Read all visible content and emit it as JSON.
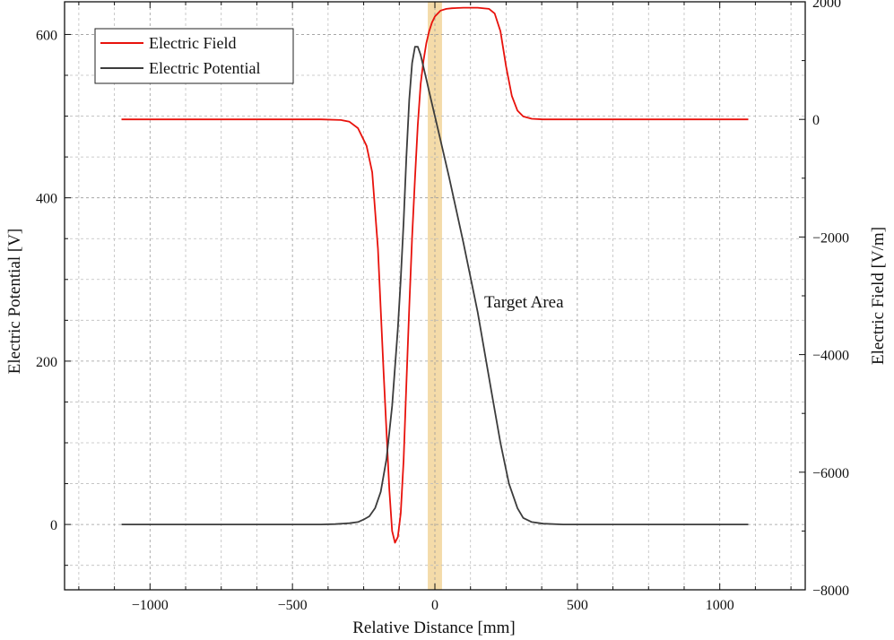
{
  "chart_data": {
    "type": "line",
    "xlabel": "Relative Distance [mm]",
    "ylabel_left": "Electric Potential [V]",
    "ylabel_right": "Electric Field [V/m]",
    "xlim": [
      -1300,
      1300
    ],
    "ylim_left": [
      -80,
      640
    ],
    "ylim_right": [
      -8000,
      2000
    ],
    "x_ticks": [
      -1000,
      -500,
      0,
      500,
      1000
    ],
    "x_tick_labels": [
      "−1000",
      "−500",
      "0",
      "500",
      "1000"
    ],
    "y_left_ticks": [
      0,
      200,
      400,
      600
    ],
    "y_left_tick_labels": [
      "0",
      "200",
      "400",
      "600"
    ],
    "y_right_ticks": [
      -8000,
      -6000,
      -4000,
      -2000,
      0,
      2000
    ],
    "y_right_tick_labels": [
      "−8000",
      "−6000",
      "−4000",
      "−2000",
      "0",
      "2000"
    ],
    "grid": true,
    "legend_position": "top-left",
    "annotation": "Target Area",
    "target_band": {
      "x_from": -25,
      "x_to": 25,
      "color": "#f2d59a"
    },
    "series": [
      {
        "name": "Electric Field",
        "axis": "right",
        "color": "#e8120c",
        "x": [
          -1100,
          -400,
          -330,
          -300,
          -270,
          -240,
          -220,
          -200,
          -180,
          -160,
          -150,
          -140,
          -130,
          -120,
          -110,
          -100,
          -90,
          -80,
          -70,
          -60,
          -50,
          -40,
          -30,
          -20,
          -10,
          0,
          20,
          40,
          60,
          100,
          150,
          190,
          210,
          230,
          250,
          270,
          290,
          310,
          340,
          380,
          450,
          1100
        ],
        "y": [
          0,
          0,
          -10,
          -40,
          -150,
          -450,
          -900,
          -2200,
          -4300,
          -6300,
          -7000,
          -7200,
          -7100,
          -6700,
          -5800,
          -4500,
          -3200,
          -2000,
          -1000,
          -100,
          600,
          1000,
          1300,
          1500,
          1650,
          1750,
          1850,
          1880,
          1890,
          1900,
          1900,
          1880,
          1800,
          1500,
          900,
          400,
          150,
          50,
          10,
          0,
          0,
          0
        ]
      },
      {
        "name": "Electric Potential",
        "axis": "left",
        "color": "#3c3c3c",
        "x": [
          -1100,
          -400,
          -350,
          -300,
          -270,
          -250,
          -230,
          -210,
          -190,
          -170,
          -150,
          -130,
          -120,
          -110,
          -100,
          -90,
          -80,
          -70,
          -60,
          -50,
          -40,
          -30,
          -20,
          -10,
          0,
          20,
          50,
          100,
          150,
          200,
          230,
          260,
          290,
          310,
          340,
          380,
          450,
          1100
        ],
        "y": [
          0,
          0,
          0.5,
          1.5,
          3,
          6,
          10,
          20,
          40,
          80,
          145,
          240,
          300,
          370,
          450,
          520,
          565,
          585,
          585,
          575,
          560,
          545,
          530,
          515,
          500,
          470,
          425,
          345,
          260,
          160,
          100,
          50,
          20,
          8,
          3,
          1,
          0,
          0
        ]
      }
    ]
  }
}
